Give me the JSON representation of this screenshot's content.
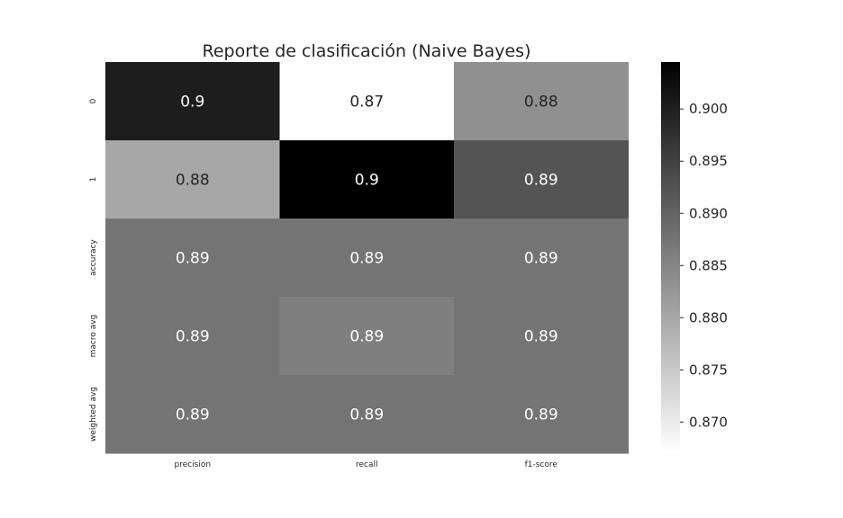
{
  "chart_data": {
    "type": "heatmap",
    "title": "Reporte de clasificación (Naive Bayes)",
    "columns": [
      "precision",
      "recall",
      "f1-score"
    ],
    "rows": [
      "0",
      "1",
      "accuracy",
      "macro avg",
      "weighted avg"
    ],
    "values": [
      [
        0.9003,
        0.8671,
        0.8834
      ],
      [
        0.88,
        0.9045,
        0.8922
      ],
      [
        0.8875,
        0.8875,
        0.8875
      ],
      [
        0.8875,
        0.8858,
        0.8875
      ],
      [
        0.8875,
        0.8875,
        0.8875
      ]
    ],
    "labels": [
      [
        "0.9",
        "0.87",
        "0.88"
      ],
      [
        "0.88",
        "0.9",
        "0.89"
      ],
      [
        "0.89",
        "0.89",
        "0.89"
      ],
      [
        "0.89",
        "0.89",
        "0.89"
      ],
      [
        "0.89",
        "0.89",
        "0.89"
      ]
    ],
    "colormap": "Greys",
    "colorbar": {
      "range": [
        0.8671,
        0.9045
      ],
      "ticks": [
        "0.870",
        "0.875",
        "0.880",
        "0.885",
        "0.890",
        "0.895",
        "0.900"
      ],
      "tick_values": [
        0.87,
        0.875,
        0.88,
        0.885,
        0.89,
        0.895,
        0.9
      ]
    },
    "grid": false
  }
}
